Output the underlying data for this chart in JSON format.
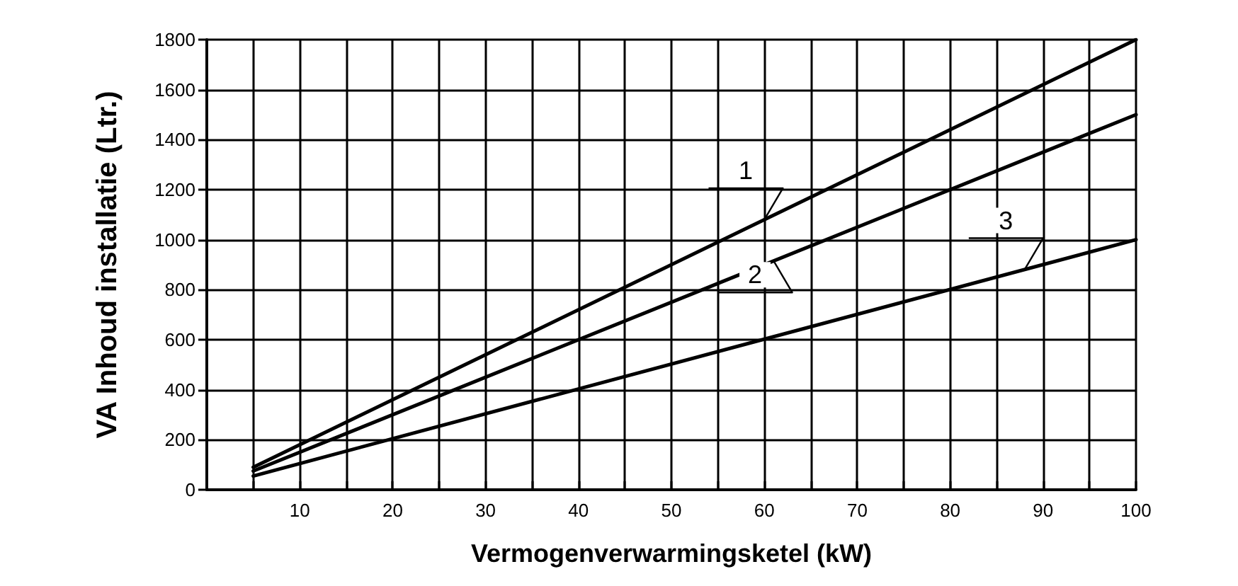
{
  "chart_data": {
    "type": "line",
    "xlabel": "Vermogenverwarmingsketel (kW)",
    "ylabel": "VA Inhoud installatie (Ltr.)",
    "xlim": [
      0,
      100
    ],
    "xticks": [
      {
        "value": 0,
        "label": null
      },
      {
        "value": 5,
        "label": null
      },
      10,
      {
        "value": 15,
        "label": null
      },
      20,
      {
        "value": 25,
        "label": null
      },
      30,
      {
        "value": 35,
        "label": null
      },
      40,
      {
        "value": 45,
        "label": null
      },
      50,
      {
        "value": 55,
        "label": null
      },
      60,
      {
        "value": 65,
        "label": null
      },
      70,
      {
        "value": 75,
        "label": null
      },
      80,
      {
        "value": 85,
        "label": null
      },
      90,
      {
        "value": 95,
        "label": null
      },
      100
    ],
    "ylim": [
      0,
      1800
    ],
    "yticks": [
      0,
      200,
      400,
      600,
      800,
      1000,
      1200,
      1400,
      1600,
      1800
    ],
    "grid": true,
    "marker": "none",
    "line_style": "solid",
    "x": [
      5,
      100
    ],
    "series": [
      {
        "color": "#000000",
        "values": [
          90,
          1800
        ]
      },
      {
        "color": "#000000",
        "values": [
          75,
          1500
        ]
      },
      {
        "color": "#000000",
        "values": [
          55,
          1000
        ]
      }
    ],
    "annotations": [
      {
        "text": "1",
        "x": 60,
        "y": 1080
      },
      {
        "text": "2",
        "x": 61,
        "y": 915
      },
      {
        "text": "3",
        "x": 88,
        "y": 880
      }
    ]
  }
}
